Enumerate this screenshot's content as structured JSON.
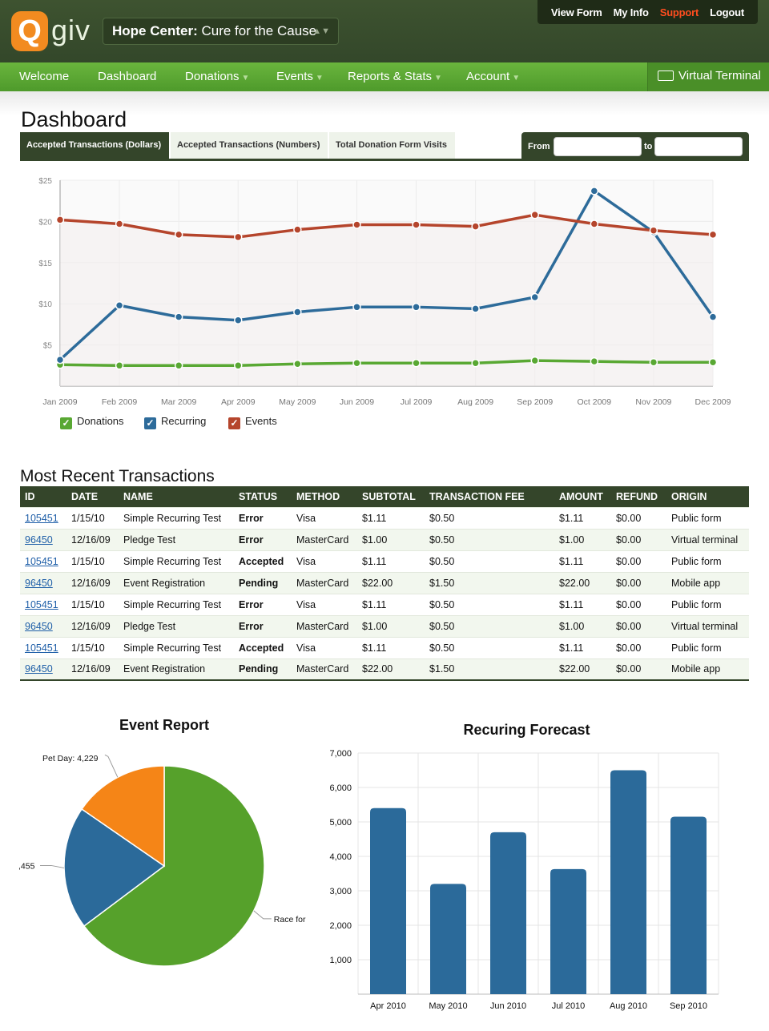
{
  "header": {
    "logo_q": "Q",
    "logo_text": "giv",
    "org_name": "Hope Center:",
    "org_campaign": "Cure for the Cause",
    "org_select_arrows": "▲▼",
    "top_links": [
      "View Form",
      "My Info",
      "Support",
      "Logout"
    ]
  },
  "nav": {
    "items": [
      {
        "label": "Welcome",
        "caret": ""
      },
      {
        "label": "Dashboard",
        "caret": ""
      },
      {
        "label": "Donations",
        "caret": "▼"
      },
      {
        "label": "Events",
        "caret": "▼"
      },
      {
        "label": "Reports & Stats",
        "caret": "▼"
      },
      {
        "label": "Account",
        "caret": "▼"
      }
    ],
    "virtual_terminal": "Virtual Terminal"
  },
  "dashboard": {
    "title": "Dashboard",
    "tabs": [
      "Accepted Transactions (Dollars)",
      "Accepted Transactions (Numbers)",
      "Total Donation Form Visits"
    ],
    "active_tab": 0,
    "date_from_label": "From",
    "date_to_label": "to",
    "date_from_value": "",
    "date_to_value": ""
  },
  "line_chart": {
    "chart_data": {
      "type": "line",
      "x": [
        "Jan 2009",
        "Feb 2009",
        "Mar 2009",
        "Apr 2009",
        "May 2009",
        "Jun 2009",
        "Jul 2009",
        "Aug 2009",
        "Sep 2009",
        "Oct 2009",
        "Nov 2009",
        "Dec 2009"
      ],
      "y_ticks": [
        "$5",
        "$10",
        "$15",
        "$20",
        "$25"
      ],
      "ylim": [
        0,
        25
      ],
      "grid": true,
      "series": [
        {
          "name": "Donations",
          "color": "#59a833",
          "values": [
            2.6,
            2.5,
            2.5,
            2.5,
            2.7,
            2.8,
            2.8,
            2.8,
            3.1,
            3.0,
            2.9,
            2.9
          ]
        },
        {
          "name": "Recurring",
          "color": "#2d6b9a",
          "values": [
            3.2,
            9.8,
            8.4,
            8.0,
            9.0,
            9.6,
            9.6,
            9.4,
            10.8,
            23.7,
            18.7,
            8.4
          ]
        },
        {
          "name": "Events",
          "color": "#b5452c",
          "values": [
            20.2,
            19.7,
            18.4,
            18.1,
            19.0,
            19.6,
            19.6,
            19.4,
            20.8,
            19.7,
            18.9,
            18.4
          ]
        }
      ]
    },
    "legend": [
      "Donations",
      "Recurring",
      "Events"
    ]
  },
  "transactions": {
    "title": "Most Recent Transactions",
    "columns": [
      "ID",
      "DATE",
      "NAME",
      "STATUS",
      "METHOD",
      "SUBTOTAL",
      "TRANSACTION FEE",
      "AMOUNT",
      "REFUND",
      "ORIGIN"
    ],
    "rows": [
      [
        "105451",
        "1/15/10",
        "Simple Recurring Test",
        "Error",
        "Visa",
        "$1.11",
        "$0.50",
        "$1.11",
        "$0.00",
        "Public form"
      ],
      [
        "96450",
        "12/16/09",
        "Pledge Test",
        "Error",
        "MasterCard",
        "$1.00",
        "$0.50",
        "$1.00",
        "$0.00",
        "Virtual terminal"
      ],
      [
        "105451",
        "1/15/10",
        "Simple Recurring Test",
        "Accepted",
        "Visa",
        "$1.11",
        "$0.50",
        "$1.11",
        "$0.00",
        "Public form"
      ],
      [
        "96450",
        "12/16/09",
        "Event Registration",
        "Pending",
        "MasterCard",
        "$22.00",
        "$1.50",
        "$22.00",
        "$0.00",
        "Mobile app"
      ],
      [
        "105451",
        "1/15/10",
        "Simple Recurring Test",
        "Error",
        "Visa",
        "$1.11",
        "$0.50",
        "$1.11",
        "$0.00",
        "Public form"
      ],
      [
        "96450",
        "12/16/09",
        "Pledge Test",
        "Error",
        "MasterCard",
        "$1.00",
        "$0.50",
        "$1.00",
        "$0.00",
        "Virtual terminal"
      ],
      [
        "105451",
        "1/15/10",
        "Simple Recurring Test",
        "Accepted",
        "Visa",
        "$1.11",
        "$0.50",
        "$1.11",
        "$0.00",
        "Public form"
      ],
      [
        "96450",
        "12/16/09",
        "Event Registration",
        "Pending",
        "MasterCard",
        "$22.00",
        "$1.50",
        "$22.00",
        "$0.00",
        "Mobile app"
      ]
    ]
  },
  "event_report": {
    "title": "Event Report",
    "chart_data": {
      "type": "pie",
      "slices": [
        {
          "label": "Race for ",
          "value": 17800,
          "color": "#56a12b"
        },
        {
          "label": "",
          "label_visible": ",455",
          "value": 5455,
          "color": "#2b6a9a"
        },
        {
          "label": "Pet Day: 4,229",
          "value": 4229,
          "color": "#f58517"
        }
      ]
    }
  },
  "recurring_forecast": {
    "title": "Recuring Forecast",
    "chart_data": {
      "type": "bar",
      "categories": [
        "Apr 2010",
        "May 2010",
        "Jun 2010",
        "Jul 2010",
        "Aug 2010",
        "Sep 2010"
      ],
      "values": [
        5400,
        3200,
        4700,
        3630,
        6500,
        5150
      ],
      "y_ticks": [
        "1,000",
        "2,000",
        "3,000",
        "4,000",
        "5,000",
        "6,000",
        "7,000"
      ],
      "ylim": [
        0,
        7000
      ],
      "grid": true,
      "color": "#2b6a9a"
    }
  }
}
